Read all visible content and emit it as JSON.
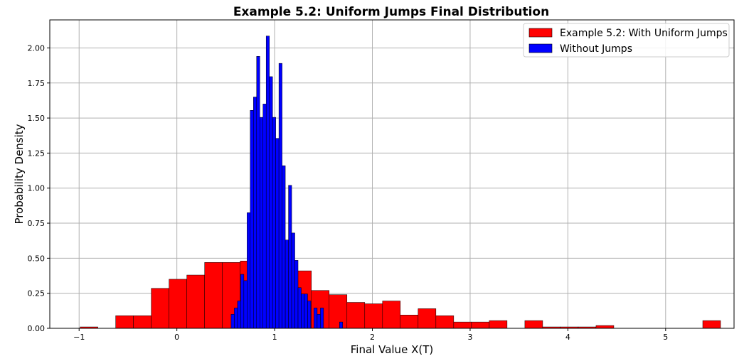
{
  "chart_data": {
    "type": "bar",
    "title": "Example 5.2: Uniform Jumps Final Distribution",
    "xlabel": "Final Value X(T)",
    "ylabel": "Probability Density",
    "xlim": [
      -1.3,
      5.7
    ],
    "ylim": [
      0,
      2.2
    ],
    "xticks": [
      {
        "value": -1,
        "label": "−1"
      },
      {
        "value": 0,
        "label": "0"
      },
      {
        "value": 1,
        "label": "1"
      },
      {
        "value": 2,
        "label": "2"
      },
      {
        "value": 3,
        "label": "3"
      },
      {
        "value": 4,
        "label": "4"
      },
      {
        "value": 5,
        "label": "5"
      }
    ],
    "yticks": [
      {
        "value": 0,
        "label": "0.00"
      },
      {
        "value": 0.25,
        "label": "0.25"
      },
      {
        "value": 0.5,
        "label": "0.50"
      },
      {
        "value": 0.75,
        "label": "0.75"
      },
      {
        "value": 1.0,
        "label": "1.00"
      },
      {
        "value": 1.25,
        "label": "1.25"
      },
      {
        "value": 1.5,
        "label": "1.50"
      },
      {
        "value": 1.75,
        "label": "1.75"
      },
      {
        "value": 2.0,
        "label": "2.00"
      }
    ],
    "grid": true,
    "legend_position": "top-right",
    "series": [
      {
        "name": "Example 5.2: With Uniform Jumps",
        "color": "#ff0000",
        "bin_start": -0.99,
        "bin_width": 0.182,
        "values": [
          0.01,
          0,
          0.09,
          0.09,
          0.285,
          0.35,
          0.38,
          0.47,
          0.47,
          0.48,
          0.48,
          0.41,
          0.41,
          0.27,
          0.24,
          0.185,
          0.175,
          0.195,
          0.095,
          0.14,
          0.09,
          0.045,
          0.045,
          0.055,
          0,
          0.055,
          0.01,
          0.01,
          0.01,
          0.02,
          0,
          0,
          0,
          0,
          0,
          0.055
        ]
      },
      {
        "name": "Without Jumps",
        "color": "#0000ff",
        "bin_start": 0.555,
        "bin_width": 0.0326,
        "values": [
          0.1,
          0.145,
          0.195,
          0.385,
          0.34,
          0.825,
          1.555,
          1.65,
          1.94,
          1.505,
          1.6,
          2.085,
          1.795,
          1.505,
          1.355,
          1.89,
          1.16,
          0.63,
          1.02,
          0.68,
          0.485,
          0.29,
          0.245,
          0.245,
          0.195,
          0,
          0.145,
          0.1,
          0.145,
          0,
          0,
          0,
          0,
          0,
          0.045
        ]
      }
    ]
  }
}
